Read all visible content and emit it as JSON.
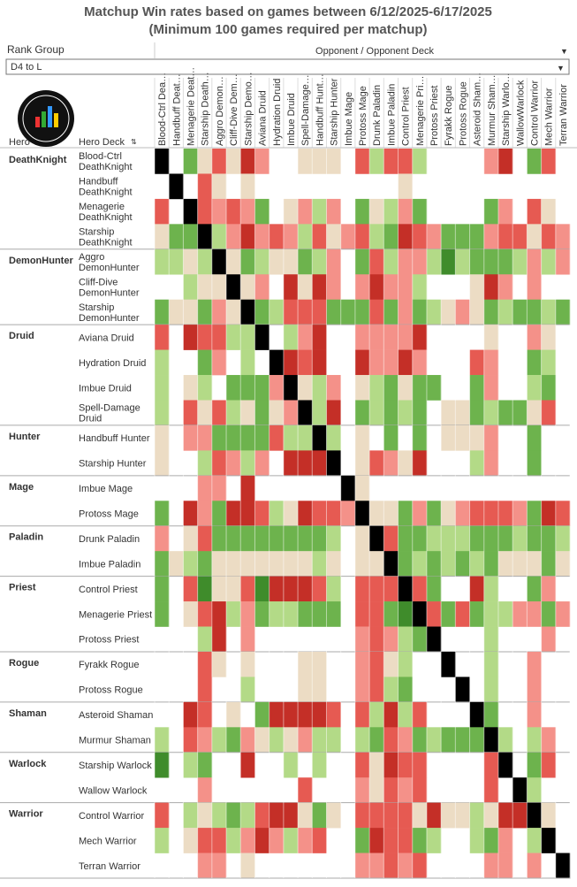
{
  "header": {
    "title_line1": "Matchup Win rates based on games between 6/12/2025-6/17/2025",
    "title_line2": "(Minimum 100 games required per matchup)"
  },
  "filter": {
    "label": "Rank Group",
    "value": "D4 to L"
  },
  "column_group_label": "Opponent / Opponent Deck",
  "row_headers": {
    "hero": "Hero",
    "deck": "Hero Deck"
  },
  "columns": [
    "Blood-Ctrl Dea…",
    "Handbuff Deat…",
    "Menagerie Deat…",
    "Starship Death…",
    "Aggro Demon…",
    "Cliff-Dive Dem…",
    "Starship Demo…",
    "Aviana Druid",
    "Hydration Druid",
    "Imbue Druid",
    "Spell-Damage…",
    "Handbuff Hunt…",
    "Starship Hunter",
    "Imbue Mage",
    "Protoss Mage",
    "Drunk Paladin",
    "Imbue Paladin",
    "Control Priest",
    "Menagerie Pri…",
    "Protoss Priest",
    "Fyrakk Rogue",
    "Protoss Rogue",
    "Asteroid Sham…",
    "Murmur Sham…",
    "Starship Warlo…",
    "WallowWarlock",
    "Control Warrior",
    "Mech Warrior",
    "Terran Warrior"
  ],
  "heroes": [
    {
      "name": "DeathKnight",
      "decks": [
        "Blood-Ctrl DeathKnight",
        "Handbuff DeathKnight",
        "Menagerie DeathKnight",
        "Starship DeathKnight"
      ]
    },
    {
      "name": "DemonHunter",
      "decks": [
        "Aggro DemonHunter",
        "Cliff-Dive DemonHunter",
        "Starship DemonHunter"
      ]
    },
    {
      "name": "Druid",
      "decks": [
        "Aviana Druid",
        "Hydration Druid",
        "Imbue Druid",
        "Spell-Damage Druid"
      ]
    },
    {
      "name": "Hunter",
      "decks": [
        "Handbuff Hunter",
        "Starship Hunter"
      ]
    },
    {
      "name": "Mage",
      "decks": [
        "Imbue Mage",
        "Protoss Mage"
      ]
    },
    {
      "name": "Paladin",
      "decks": [
        "Drunk Paladin",
        "Imbue Paladin"
      ]
    },
    {
      "name": "Priest",
      "decks": [
        "Control Priest",
        "Menagerie Priest",
        "Protoss Priest"
      ]
    },
    {
      "name": "Rogue",
      "decks": [
        "Fyrakk Rogue",
        "Protoss Rogue"
      ]
    },
    {
      "name": "Shaman",
      "decks": [
        "Asteroid Shaman",
        "Murmur Shaman"
      ]
    },
    {
      "name": "Warlock",
      "decks": [
        "Starship Warlock",
        "Wallow Warlock"
      ]
    },
    {
      "name": "Warrior",
      "decks": [
        "Control Warrior",
        "Mech Warrior",
        "Terran Warrior"
      ]
    }
  ],
  "colors": {
    "D": "#c42f27",
    "R": "#e65a52",
    "r": "#f49189",
    "b": "#ecdcc4",
    "l": "#b3da87",
    "G": "#6db34d",
    "E": "#3f8c2b",
    "X": "#000000"
  },
  "matrix": [
    [
      "X",
      null,
      "G",
      "b",
      "R",
      "b",
      "D",
      "r",
      null,
      null,
      "b",
      "b",
      "b",
      null,
      "R",
      "l",
      "R",
      "R",
      "l",
      null,
      null,
      null,
      null,
      "r",
      "D",
      null,
      "G",
      "R",
      null
    ],
    [
      null,
      "X",
      null,
      "R",
      "b",
      null,
      "b",
      null,
      null,
      null,
      null,
      null,
      null,
      null,
      null,
      null,
      null,
      "b",
      null,
      null,
      null,
      null,
      null,
      null,
      null,
      null,
      null,
      null,
      null
    ],
    [
      "R",
      null,
      "X",
      "R",
      "r",
      "R",
      "r",
      "G",
      null,
      "b",
      "r",
      "l",
      "r",
      null,
      "G",
      "b",
      "l",
      "r",
      "G",
      null,
      null,
      null,
      null,
      "G",
      "r",
      null,
      "R",
      "b",
      null
    ],
    [
      "b",
      "G",
      "G",
      "X",
      "l",
      "r",
      "D",
      "r",
      "R",
      "r",
      "l",
      "R",
      "b",
      "r",
      "R",
      "l",
      "G",
      "D",
      "R",
      "r",
      "G",
      "G",
      "G",
      "r",
      "R",
      "R",
      "b",
      "R",
      "r"
    ],
    [
      "l",
      "l",
      "b",
      "l",
      "X",
      "b",
      "G",
      "l",
      "b",
      "b",
      "G",
      "l",
      "r",
      null,
      "G",
      "R",
      "l",
      "r",
      "r",
      "l",
      "E",
      "l",
      "G",
      "G",
      "G",
      "l",
      "r",
      "l",
      "r"
    ],
    [
      null,
      null,
      "l",
      "b",
      "b",
      "X",
      "b",
      "r",
      null,
      "D",
      "b",
      "D",
      "r",
      null,
      "r",
      "D",
      "r",
      "r",
      "l",
      null,
      null,
      null,
      "b",
      "D",
      "r",
      null,
      "r",
      null,
      null
    ],
    [
      "G",
      "b",
      "b",
      "G",
      "r",
      "b",
      "X",
      "G",
      "l",
      "R",
      "R",
      "R",
      "G",
      "G",
      "G",
      "R",
      "G",
      "r",
      "G",
      "l",
      "b",
      "r",
      "b",
      "G",
      "l",
      "G",
      "G",
      "l",
      "G"
    ],
    [
      "R",
      null,
      "D",
      "R",
      "R",
      "l",
      "l",
      "X",
      null,
      "l",
      "r",
      "D",
      null,
      null,
      "r",
      "r",
      "r",
      "r",
      "D",
      null,
      null,
      null,
      null,
      "b",
      null,
      null,
      "r",
      "b",
      null
    ],
    [
      "l",
      null,
      null,
      "G",
      "r",
      null,
      "l",
      null,
      "X",
      "D",
      "R",
      "D",
      null,
      null,
      "D",
      "r",
      "r",
      "D",
      "r",
      null,
      null,
      null,
      "R",
      "r",
      null,
      null,
      "G",
      "l",
      null
    ],
    [
      "l",
      null,
      "b",
      "l",
      null,
      "G",
      "G",
      "G",
      "r",
      "X",
      "b",
      "l",
      "r",
      null,
      "b",
      "l",
      "G",
      "b",
      "G",
      "G",
      null,
      null,
      "G",
      "r",
      null,
      null,
      "l",
      "G",
      null
    ],
    [
      "l",
      null,
      "R",
      "b",
      "R",
      "l",
      "b",
      "G",
      "b",
      "r",
      "X",
      "l",
      "D",
      null,
      "G",
      "l",
      "G",
      "l",
      "G",
      null,
      "b",
      "b",
      "G",
      "l",
      "G",
      "G",
      "b",
      "R",
      null
    ],
    [
      "b",
      null,
      "r",
      "r",
      "G",
      "G",
      "G",
      "G",
      "R",
      "l",
      "l",
      "X",
      "l",
      null,
      "b",
      null,
      "G",
      null,
      "G",
      null,
      "b",
      "b",
      "b",
      "r",
      null,
      null,
      "G",
      null,
      null
    ],
    [
      "b",
      null,
      null,
      "l",
      "R",
      "r",
      "l",
      "r",
      null,
      "D",
      "D",
      "D",
      "X",
      null,
      "b",
      "R",
      "r",
      "b",
      "D",
      null,
      null,
      null,
      "l",
      "r",
      null,
      null,
      "G",
      null,
      null
    ],
    [
      null,
      null,
      null,
      "r",
      "r",
      null,
      "D",
      null,
      null,
      null,
      null,
      null,
      null,
      "X",
      "b",
      null,
      null,
      null,
      null,
      null,
      null,
      null,
      null,
      null,
      null,
      null,
      null,
      null,
      null
    ],
    [
      "G",
      null,
      "D",
      "r",
      "G",
      "D",
      "D",
      "R",
      "l",
      "b",
      "D",
      "R",
      "R",
      "r",
      "X",
      "b",
      "b",
      "G",
      "r",
      "G",
      "b",
      "r",
      "R",
      "R",
      "R",
      "r",
      "G",
      "D",
      "R"
    ],
    [
      "r",
      null,
      "b",
      "R",
      "G",
      "G",
      "G",
      "G",
      "G",
      "G",
      "G",
      "G",
      "l",
      null,
      "b",
      "X",
      "R",
      "G",
      "G",
      "l",
      "l",
      "l",
      "G",
      "G",
      "G",
      "l",
      "G",
      "G",
      "l"
    ],
    [
      "G",
      "b",
      "l",
      "G",
      "b",
      "b",
      "b",
      "b",
      "b",
      "b",
      "b",
      "l",
      "b",
      null,
      "b",
      "b",
      "X",
      "G",
      "l",
      "G",
      "l",
      "G",
      "l",
      "G",
      "b",
      "b",
      "b",
      "G",
      "b"
    ],
    [
      "G",
      null,
      "R",
      "E",
      "b",
      "b",
      "R",
      "E",
      "D",
      "D",
      "D",
      "R",
      "l",
      null,
      "R",
      "R",
      "R",
      "X",
      "R",
      "G",
      null,
      null,
      "D",
      "l",
      null,
      null,
      "G",
      "r",
      null
    ],
    [
      "G",
      null,
      "b",
      "R",
      "D",
      "l",
      "r",
      "G",
      "l",
      "l",
      "G",
      "G",
      "G",
      null,
      "R",
      "R",
      "G",
      "E",
      "X",
      "R",
      "G",
      "R",
      "G",
      "l",
      "l",
      "r",
      "r",
      "G",
      "r"
    ],
    [
      null,
      null,
      null,
      "l",
      "D",
      null,
      "r",
      null,
      null,
      null,
      null,
      null,
      null,
      null,
      "r",
      "R",
      "r",
      "l",
      "G",
      "X",
      null,
      null,
      null,
      "l",
      null,
      null,
      null,
      "r",
      null
    ],
    [
      null,
      null,
      null,
      "R",
      "b",
      null,
      "b",
      null,
      null,
      null,
      "b",
      "b",
      null,
      null,
      "r",
      "R",
      "b",
      "l",
      null,
      null,
      "X",
      null,
      null,
      "l",
      null,
      null,
      "r",
      null,
      null
    ],
    [
      null,
      null,
      null,
      "R",
      null,
      null,
      "l",
      null,
      null,
      null,
      "b",
      "b",
      null,
      null,
      "r",
      "R",
      "l",
      "G",
      null,
      null,
      null,
      "X",
      null,
      "l",
      null,
      null,
      "r",
      null,
      null
    ],
    [
      null,
      null,
      "D",
      "R",
      null,
      "b",
      null,
      "G",
      "D",
      "D",
      "D",
      "D",
      "R",
      null,
      "R",
      "l",
      "D",
      "l",
      "R",
      null,
      null,
      null,
      "X",
      "G",
      null,
      null,
      "r",
      null,
      null
    ],
    [
      "l",
      null,
      "R",
      "r",
      "l",
      "G",
      "r",
      "b",
      "l",
      "b",
      "r",
      "l",
      "l",
      null,
      "l",
      "G",
      "R",
      "r",
      "G",
      "l",
      "G",
      "G",
      "G",
      "X",
      "l",
      null,
      "l",
      "r",
      null
    ],
    [
      "E",
      null,
      "l",
      "G",
      null,
      null,
      "D",
      null,
      null,
      "l",
      null,
      "l",
      null,
      null,
      "R",
      "b",
      "D",
      "R",
      "R",
      null,
      null,
      null,
      null,
      "R",
      "X",
      null,
      "G",
      "R",
      null
    ],
    [
      null,
      null,
      null,
      "r",
      null,
      null,
      null,
      null,
      null,
      null,
      "R",
      null,
      null,
      null,
      "r",
      "b",
      "R",
      "r",
      "R",
      null,
      null,
      null,
      null,
      "R",
      null,
      "X",
      "l",
      null,
      null
    ],
    [
      "R",
      null,
      "l",
      "b",
      "l",
      "G",
      "l",
      "R",
      "D",
      "D",
      "b",
      "G",
      "b",
      null,
      "R",
      "R",
      "R",
      "R",
      "b",
      "D",
      "b",
      "b",
      "l",
      "b",
      "D",
      "D",
      "X",
      "b",
      null
    ],
    [
      "l",
      null,
      "b",
      "R",
      "R",
      "l",
      "r",
      "D",
      "r",
      "l",
      "r",
      "R",
      null,
      null,
      "G",
      "D",
      "R",
      "R",
      "G",
      "l",
      null,
      null,
      "l",
      "G",
      "r",
      null,
      "l",
      "X",
      null
    ],
    [
      null,
      null,
      null,
      "r",
      "r",
      null,
      "b",
      null,
      null,
      null,
      null,
      null,
      null,
      null,
      "r",
      "r",
      "R",
      "r",
      "R",
      null,
      null,
      null,
      null,
      "r",
      "r",
      null,
      "r",
      null,
      "X"
    ]
  ]
}
